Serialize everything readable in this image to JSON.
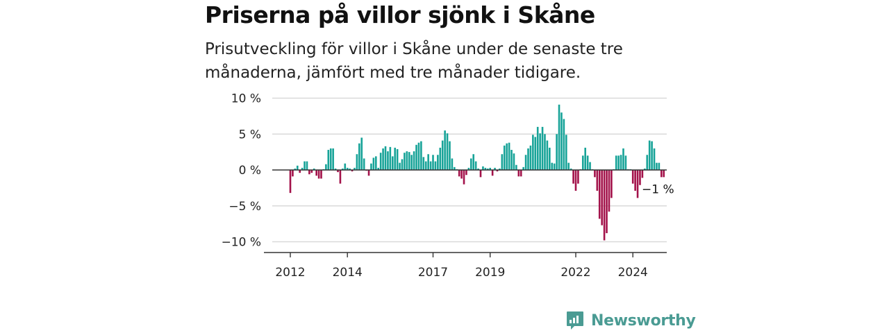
{
  "title": "Priserna på villor sjönk i Skåne",
  "subtitle": "Prisutveckling för villor i Skåne under de senaste tre månaderna, jämfört med tre månader tidigare.",
  "brand": {
    "name": "Newsworthy",
    "color": "#4a9b93",
    "icon": "newsworthy-logo-icon"
  },
  "chart_data": {
    "type": "bar",
    "ylim": [
      -11,
      10
    ],
    "yticks": [
      10,
      5,
      0,
      -5,
      -10
    ],
    "ytick_labels": [
      "10 %",
      "5 %",
      "0 %",
      "−5 %",
      "−10 %"
    ],
    "xtick_labels": [
      "2012",
      "2014",
      "2017",
      "2019",
      "2022",
      "2024"
    ],
    "xtick_months": [
      0,
      24,
      60,
      84,
      120,
      144
    ],
    "grid": true,
    "positive_color": "#17a398",
    "negative_color": "#a3124a",
    "start": "2012-01",
    "frequency": "monthly",
    "annotation": {
      "text": "−1 %",
      "month": 155,
      "value": -1
    },
    "values": [
      -3.2,
      -0.9,
      0.2,
      0.6,
      -0.4,
      0.3,
      1.2,
      1.2,
      -0.6,
      -0.4,
      0.2,
      -0.8,
      -1.2,
      -1.2,
      0.1,
      0.8,
      2.8,
      3.0,
      3.0,
      0.2,
      -0.3,
      -1.9,
      0.2,
      0.9,
      0.3,
      0.2,
      -0.2,
      0.3,
      2.2,
      3.7,
      4.5,
      1.6,
      -0.1,
      -0.8,
      0.9,
      1.7,
      1.9,
      0.3,
      2.4,
      3.0,
      3.3,
      2.6,
      3.2,
      1.9,
      3.1,
      2.9,
      1.0,
      1.5,
      2.4,
      2.6,
      2.5,
      2.1,
      2.6,
      3.5,
      3.8,
      4.0,
      1.8,
      1.2,
      2.2,
      1.2,
      2.1,
      1.2,
      2.1,
      3.1,
      4.1,
      5.5,
      5.1,
      4.0,
      1.6,
      0.4,
      0.1,
      -0.9,
      -1.2,
      -2.0,
      -0.7,
      0.3,
      1.6,
      2.2,
      1.2,
      0.2,
      -1.0,
      0.5,
      0.3,
      0.2,
      0.3,
      -0.8,
      0.3,
      -0.2,
      0.2,
      2.2,
      3.4,
      3.7,
      3.8,
      2.8,
      2.3,
      0.7,
      -0.9,
      -0.9,
      0.4,
      2.1,
      3.0,
      3.4,
      4.9,
      4.6,
      6.0,
      5.1,
      6.0,
      5.0,
      4.1,
      3.1,
      1.0,
      0.9,
      5.0,
      9.1,
      8.0,
      7.1,
      4.9,
      1.0,
      0.2,
      -1.9,
      -2.9,
      -1.9,
      0.1,
      2.0,
      3.1,
      2.0,
      1.1,
      0.1,
      -1.0,
      -2.9,
      -6.8,
      -7.7,
      -9.8,
      -8.8,
      -5.8,
      -3.9,
      0.1,
      2.0,
      2.0,
      2.1,
      3.0,
      2.0,
      0.1,
      0.1,
      -1.9,
      -2.9,
      -3.9,
      -2.1,
      -1.1,
      0.2,
      2.1,
      4.1,
      4.0,
      3.0,
      1.0,
      1.0,
      -1.0,
      -1.0
    ]
  }
}
